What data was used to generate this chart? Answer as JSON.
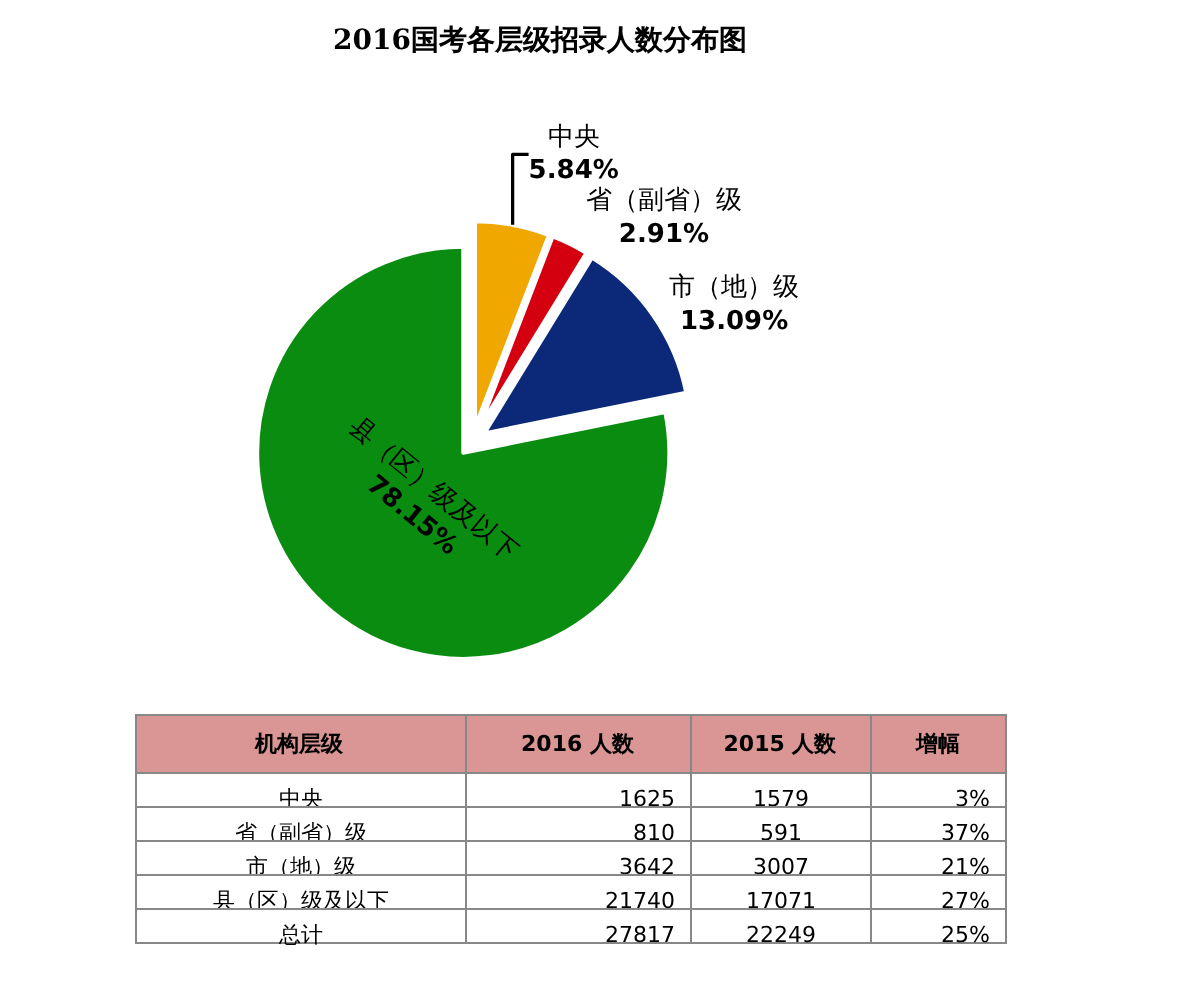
{
  "chart_data": [
    {
      "type": "pie",
      "title": "2016国考各层级招录人数分布图",
      "categories": [
        "中央",
        "省（副省）级",
        "市（地）级",
        "县（区）级及以下"
      ],
      "values": [
        5.84,
        2.91,
        13.09,
        78.15
      ],
      "value_labels": [
        "5.84%",
        "2.91%",
        "13.09%",
        "78.15%"
      ],
      "colors": [
        "#f0a800",
        "#d40010",
        "#0c2878",
        "#0a8c10"
      ],
      "legend": false
    },
    {
      "type": "other",
      "xlabel": "机构层级",
      "categories": [
        "中央",
        "省（副省）级",
        "市（地）级",
        "县（区）级及以下",
        "总计"
      ],
      "series": [
        {
          "name": "2016 人数",
          "values": [
            1625,
            810,
            3642,
            21740,
            27817
          ]
        },
        {
          "name": "2015 人数",
          "values": [
            1579,
            591,
            3007,
            17071,
            22249
          ]
        },
        {
          "name": "增幅",
          "values": [
            3,
            37,
            21,
            27,
            25
          ],
          "value_labels": [
            "3%",
            "37%",
            "21%",
            "27%",
            "25%"
          ]
        }
      ],
      "data_labels": true
    }
  ]
}
